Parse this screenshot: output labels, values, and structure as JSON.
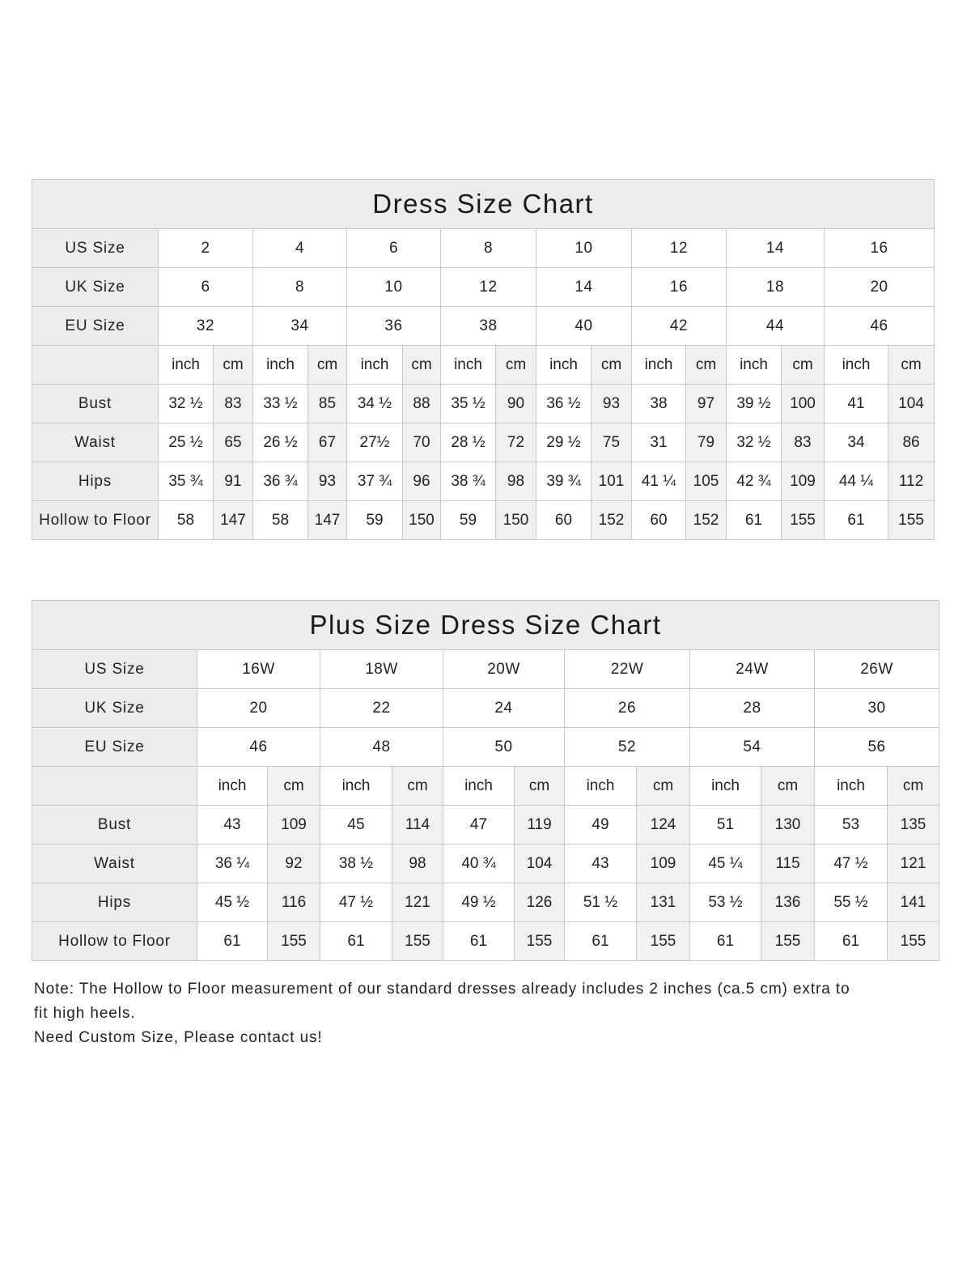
{
  "charts": [
    {
      "title": "Dress Size Chart",
      "size_rows": [
        {
          "label": "US Size",
          "values": [
            "2",
            "4",
            "6",
            "8",
            "10",
            "12",
            "14",
            "16"
          ]
        },
        {
          "label": "UK Size",
          "values": [
            "6",
            "8",
            "10",
            "12",
            "14",
            "16",
            "18",
            "20"
          ]
        },
        {
          "label": "EU Size",
          "values": [
            "32",
            "34",
            "36",
            "38",
            "40",
            "42",
            "44",
            "46"
          ]
        }
      ],
      "unit_labels": {
        "inch": "inch",
        "cm": "cm"
      },
      "measure_rows": [
        {
          "label": "Bust",
          "values": [
            [
              "32 ½",
              "83"
            ],
            [
              "33 ½",
              "85"
            ],
            [
              "34 ½",
              "88"
            ],
            [
              "35 ½",
              "90"
            ],
            [
              "36 ½",
              "93"
            ],
            [
              "38",
              "97"
            ],
            [
              "39 ½",
              "100"
            ],
            [
              "41",
              "104"
            ]
          ]
        },
        {
          "label": "Waist",
          "values": [
            [
              "25 ½",
              "65"
            ],
            [
              "26 ½",
              "67"
            ],
            [
              "27½",
              "70"
            ],
            [
              "28 ½",
              "72"
            ],
            [
              "29 ½",
              "75"
            ],
            [
              "31",
              "79"
            ],
            [
              "32 ½",
              "83"
            ],
            [
              "34",
              "86"
            ]
          ]
        },
        {
          "label": "Hips",
          "values": [
            [
              "35 ¾",
              "91"
            ],
            [
              "36 ¾",
              "93"
            ],
            [
              "37 ¾",
              "96"
            ],
            [
              "38 ¾",
              "98"
            ],
            [
              "39 ¾",
              "101"
            ],
            [
              "41 ¼",
              "105"
            ],
            [
              "42 ¾",
              "109"
            ],
            [
              "44 ¼",
              "112"
            ]
          ]
        },
        {
          "label": "Hollow to Floor",
          "values": [
            [
              "58",
              "147"
            ],
            [
              "58",
              "147"
            ],
            [
              "59",
              "150"
            ],
            [
              "59",
              "150"
            ],
            [
              "60",
              "152"
            ],
            [
              "60",
              "152"
            ],
            [
              "61",
              "155"
            ],
            [
              "61",
              "155"
            ]
          ]
        }
      ]
    },
    {
      "title": "Plus Size Dress Size Chart",
      "size_rows": [
        {
          "label": "US Size",
          "values": [
            "16W",
            "18W",
            "20W",
            "22W",
            "24W",
            "26W"
          ]
        },
        {
          "label": "UK Size",
          "values": [
            "20",
            "22",
            "24",
            "26",
            "28",
            "30"
          ]
        },
        {
          "label": "EU Size",
          "values": [
            "46",
            "48",
            "50",
            "52",
            "54",
            "56"
          ]
        }
      ],
      "unit_labels": {
        "inch": "inch",
        "cm": "cm"
      },
      "measure_rows": [
        {
          "label": "Bust",
          "values": [
            [
              "43",
              "109"
            ],
            [
              "45",
              "114"
            ],
            [
              "47",
              "119"
            ],
            [
              "49",
              "124"
            ],
            [
              "51",
              "130"
            ],
            [
              "53",
              "135"
            ]
          ]
        },
        {
          "label": "Waist",
          "values": [
            [
              "36 ¼",
              "92"
            ],
            [
              "38 ½",
              "98"
            ],
            [
              "40 ¾",
              "104"
            ],
            [
              "43",
              "109"
            ],
            [
              "45 ¼",
              "115"
            ],
            [
              "47 ½",
              "121"
            ]
          ]
        },
        {
          "label": "Hips",
          "values": [
            [
              "45 ½",
              "116"
            ],
            [
              "47 ½",
              "121"
            ],
            [
              "49 ½",
              "126"
            ],
            [
              "51 ½",
              "131"
            ],
            [
              "53 ½",
              "136"
            ],
            [
              "55 ½",
              "141"
            ]
          ]
        },
        {
          "label": "Hollow to Floor",
          "values": [
            [
              "61",
              "155"
            ],
            [
              "61",
              "155"
            ],
            [
              "61",
              "155"
            ],
            [
              "61",
              "155"
            ],
            [
              "61",
              "155"
            ],
            [
              "61",
              "155"
            ]
          ]
        }
      ]
    }
  ],
  "notes": [
    "Note: The Hollow to Floor measurement of our standard dresses already includes 2 inches (ca.5 cm) extra to",
    "fit high heels.",
    "Need Custom Size, Please contact us!"
  ]
}
